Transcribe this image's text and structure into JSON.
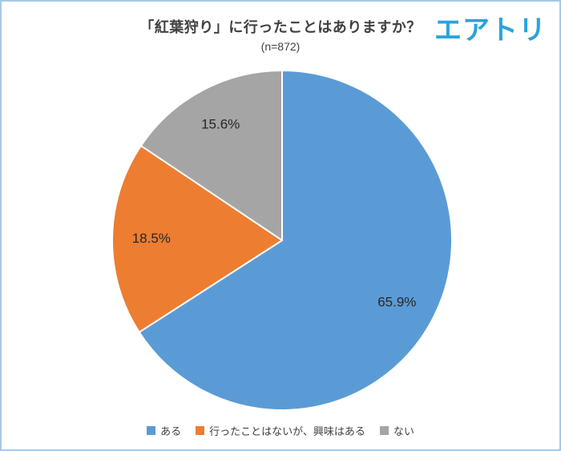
{
  "header": {
    "title": "「紅葉狩り」に行ったことはありますか？",
    "subtitle": "(n=872)"
  },
  "logo": {
    "text": "エアトリ",
    "color": "#29a3dc"
  },
  "style": {
    "border_color": "#a6c9e8",
    "title_color": "#404040",
    "slice_label_color": "#262626"
  },
  "chart_data": {
    "type": "pie",
    "title": "「紅葉狩り」に行ったことはありますか？",
    "subtitle": "(n=872)",
    "sample_size": 872,
    "start_angle_deg": 0,
    "direction": "clockwise",
    "legend_position": "bottom",
    "slices": [
      {
        "label": "ある",
        "value": 65.9,
        "display": "65.9%",
        "color": "#5b9bd5"
      },
      {
        "label": "行ったことはないが、興味はある",
        "value": 18.5,
        "display": "18.5%",
        "color": "#ed7d31"
      },
      {
        "label": "ない",
        "value": 15.6,
        "display": "15.6%",
        "color": "#a5a5a5"
      }
    ]
  }
}
